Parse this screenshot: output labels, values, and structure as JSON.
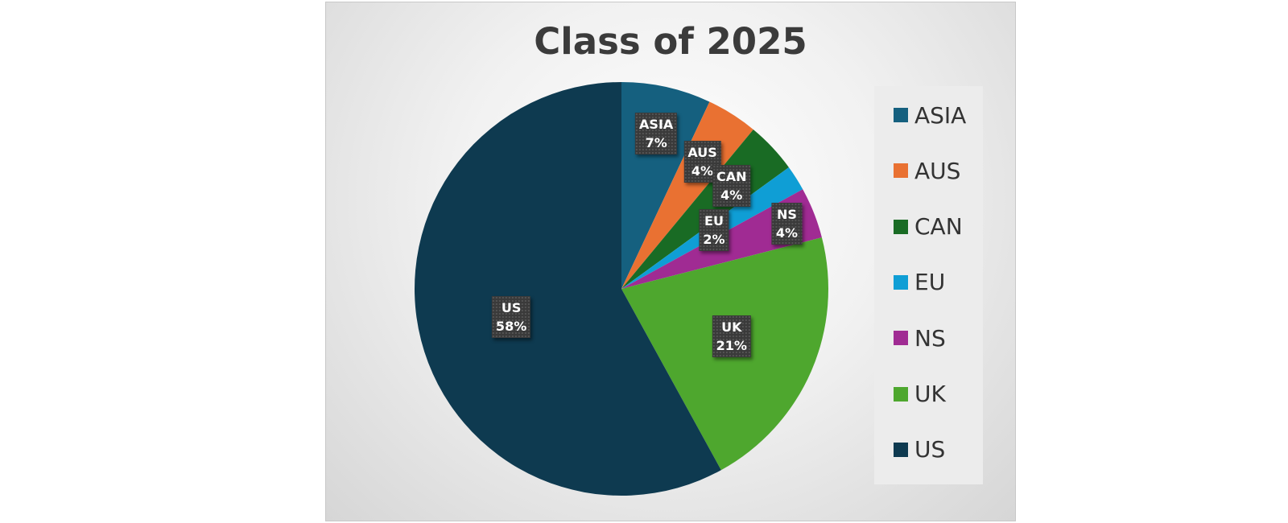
{
  "chart_data": {
    "type": "pie",
    "title": "Class of 2025",
    "categories": [
      "ASIA",
      "AUS",
      "CAN",
      "EU",
      "NS",
      "UK",
      "US"
    ],
    "values": [
      7,
      4,
      4,
      2,
      4,
      21,
      58
    ],
    "value_labels": [
      "7%",
      "4%",
      "4%",
      "2%",
      "4%",
      "21%",
      "58%"
    ],
    "colors": [
      "#15607f",
      "#e97132",
      "#196b24",
      "#0f9ed5",
      "#a02b93",
      "#4ea72e",
      "#0e3a50"
    ],
    "start_angle_deg": 0,
    "direction": "clockwise",
    "legend": {
      "position": "right",
      "entries": [
        "ASIA",
        "AUS",
        "CAN",
        "EU",
        "NS",
        "UK",
        "US"
      ]
    }
  }
}
